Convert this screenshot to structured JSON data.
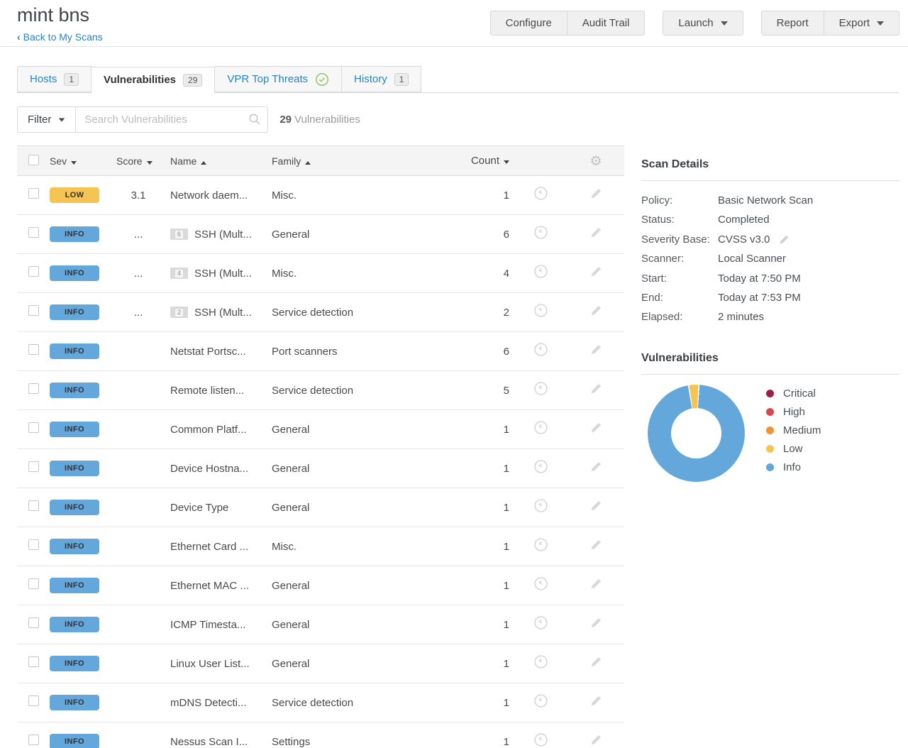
{
  "header": {
    "title": "mint bns",
    "back_chevron": "‹",
    "back_label": "Back to My Scans",
    "buttons": {
      "configure": "Configure",
      "audit_trail": "Audit Trail",
      "launch": "Launch",
      "report": "Report",
      "export": "Export"
    }
  },
  "tabs": [
    {
      "label": "Hosts",
      "badge": "1",
      "active": false,
      "check_icon": false
    },
    {
      "label": "Vulnerabilities",
      "badge": "29",
      "active": true,
      "check_icon": false
    },
    {
      "label": "VPR Top Threats",
      "badge": null,
      "active": false,
      "check_icon": true
    },
    {
      "label": "History",
      "badge": "1",
      "active": false,
      "check_icon": false
    }
  ],
  "filter_bar": {
    "filter_label": "Filter",
    "search_placeholder": "Search Vulnerabilities",
    "search_value": "",
    "result_count": "29",
    "result_label": "Vulnerabilities"
  },
  "table": {
    "header": {
      "sev": {
        "label": "Sev",
        "sort": "desc"
      },
      "score": {
        "label": "Score",
        "sort": "desc"
      },
      "name": {
        "label": "Name",
        "sort": "asc"
      },
      "family": {
        "label": "Family",
        "sort": "asc"
      },
      "count": {
        "label": "Count",
        "sort": "desc"
      }
    },
    "severity_colors": {
      "LOW": "#f6c453",
      "INFO": "#64a7db"
    },
    "rows": [
      {
        "sev": "LOW",
        "score": "3.1",
        "group": null,
        "name": "Network daem...",
        "family": "Misc.",
        "count": "1"
      },
      {
        "sev": "INFO",
        "score": "...",
        "group": "6",
        "name": "SSH (Mult...",
        "family": "General",
        "count": "6"
      },
      {
        "sev": "INFO",
        "score": "...",
        "group": "4",
        "name": "SSH (Mult...",
        "family": "Misc.",
        "count": "4"
      },
      {
        "sev": "INFO",
        "score": "...",
        "group": "2",
        "name": "SSH (Mult...",
        "family": "Service detection",
        "count": "2"
      },
      {
        "sev": "INFO",
        "score": "",
        "group": null,
        "name": "Netstat Portsc...",
        "family": "Port scanners",
        "count": "6"
      },
      {
        "sev": "INFO",
        "score": "",
        "group": null,
        "name": "Remote listen...",
        "family": "Service detection",
        "count": "5"
      },
      {
        "sev": "INFO",
        "score": "",
        "group": null,
        "name": "Common Platf...",
        "family": "General",
        "count": "1"
      },
      {
        "sev": "INFO",
        "score": "",
        "group": null,
        "name": "Device Hostna...",
        "family": "General",
        "count": "1"
      },
      {
        "sev": "INFO",
        "score": "",
        "group": null,
        "name": "Device Type",
        "family": "General",
        "count": "1"
      },
      {
        "sev": "INFO",
        "score": "",
        "group": null,
        "name": "Ethernet Card ...",
        "family": "Misc.",
        "count": "1"
      },
      {
        "sev": "INFO",
        "score": "",
        "group": null,
        "name": "Ethernet MAC ...",
        "family": "General",
        "count": "1"
      },
      {
        "sev": "INFO",
        "score": "",
        "group": null,
        "name": "ICMP Timesta...",
        "family": "General",
        "count": "1"
      },
      {
        "sev": "INFO",
        "score": "",
        "group": null,
        "name": "Linux User List...",
        "family": "General",
        "count": "1"
      },
      {
        "sev": "INFO",
        "score": "",
        "group": null,
        "name": "mDNS Detecti...",
        "family": "Service detection",
        "count": "1"
      },
      {
        "sev": "INFO",
        "score": "",
        "group": null,
        "name": "Nessus Scan I...",
        "family": "Settings",
        "count": "1"
      }
    ]
  },
  "scan_details": {
    "title": "Scan Details",
    "fields": [
      {
        "label": "Policy:",
        "value": "Basic Network Scan",
        "editable": false
      },
      {
        "label": "Status:",
        "value": "Completed",
        "editable": false
      },
      {
        "label": "Severity Base:",
        "value": "CVSS v3.0",
        "editable": true
      },
      {
        "label": "Scanner:",
        "value": "Local Scanner",
        "editable": false
      },
      {
        "label": "Start:",
        "value": "Today at 7:50 PM",
        "editable": false
      },
      {
        "label": "End:",
        "value": "Today at 7:53 PM",
        "editable": false
      },
      {
        "label": "Elapsed:",
        "value": "2 minutes",
        "editable": false
      }
    ]
  },
  "chart_data": {
    "type": "pie",
    "donut": true,
    "title": "Vulnerabilities",
    "legend_position": "right",
    "total": 29,
    "series": [
      {
        "name": "Critical",
        "value": 0,
        "color": "#9b2242"
      },
      {
        "name": "High",
        "value": 0,
        "color": "#dd4450"
      },
      {
        "name": "Medium",
        "value": 0,
        "color": "#ef9336"
      },
      {
        "name": "Low",
        "value": 1,
        "color": "#f6c453"
      },
      {
        "name": "Info",
        "value": 28,
        "color": "#64a7db"
      }
    ]
  }
}
